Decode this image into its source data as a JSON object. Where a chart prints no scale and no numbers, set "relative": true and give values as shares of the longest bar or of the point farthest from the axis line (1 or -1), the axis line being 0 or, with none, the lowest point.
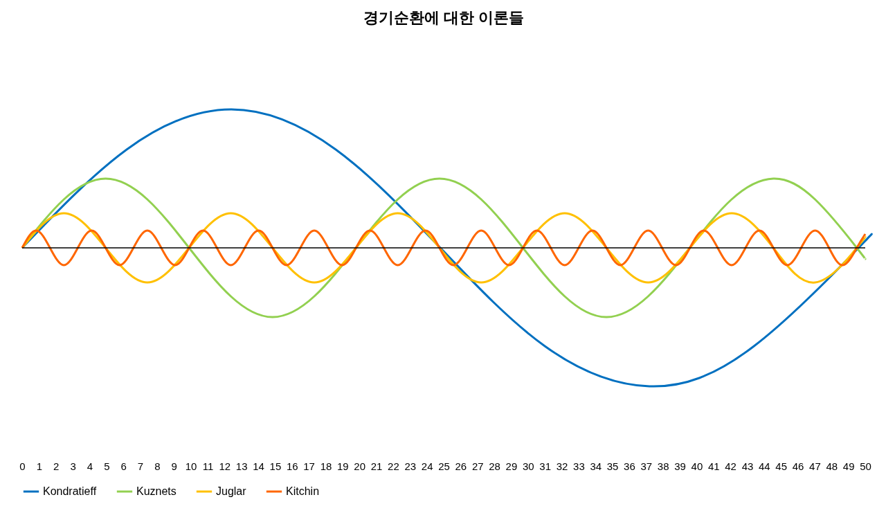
{
  "chart_data": {
    "type": "line",
    "title": "경기순환에 대한 이론들",
    "relative": true,
    "legend": "bottom",
    "xlim": [
      0,
      50
    ],
    "xticks": [
      0,
      1,
      2,
      3,
      4,
      5,
      6,
      7,
      8,
      9,
      10,
      11,
      12,
      13,
      14,
      15,
      16,
      17,
      18,
      19,
      20,
      21,
      22,
      23,
      24,
      25,
      26,
      27,
      28,
      29,
      30,
      31,
      32,
      33,
      34,
      35,
      36,
      37,
      38,
      39,
      40,
      41,
      42,
      43,
      44,
      45,
      46,
      47,
      48,
      49,
      50
    ],
    "series": [
      {
        "name": "Kondratieff",
        "color": "#0070c0",
        "x": [
          0,
          6.2,
          12.4,
          18.6,
          24.8,
          31,
          37.2,
          43.4,
          49.6,
          50
        ],
        "values": [
          0,
          0.71,
          1,
          0.71,
          0,
          -0.71,
          -1,
          -0.71,
          0,
          0.05
        ]
      },
      {
        "name": "Kuznets",
        "color": "#92d050",
        "x": [
          0,
          2.475,
          4.95,
          7.425,
          9.9,
          12.375,
          14.85,
          17.325,
          19.8,
          22.275,
          24.75,
          27.225,
          29.7,
          32.175,
          34.65,
          37.125,
          39.6,
          42.075,
          44.55,
          47.025,
          49.5,
          50
        ],
        "values": [
          0,
          0.35,
          0.5,
          0.35,
          0,
          -0.35,
          -0.5,
          -0.35,
          0,
          0.35,
          0.5,
          0.35,
          0,
          -0.35,
          -0.5,
          -0.35,
          0,
          0.35,
          0.5,
          0.35,
          0,
          -0.08
        ]
      },
      {
        "name": "Juglar",
        "color": "#ffc000",
        "x": [
          0,
          2.475,
          4.95,
          7.425,
          9.9,
          12.375,
          14.85,
          17.325,
          19.8,
          22.275,
          24.75,
          27.225,
          29.7,
          32.175,
          34.65,
          37.125,
          39.6,
          42.075,
          44.55,
          47.025,
          49.5,
          50
        ],
        "values": [
          0,
          0.25,
          0,
          -0.25,
          0,
          0.25,
          0,
          -0.25,
          0,
          0.25,
          0,
          -0.25,
          0,
          0.25,
          0,
          -0.25,
          0,
          0.25,
          0,
          -0.25,
          0,
          0.08
        ]
      },
      {
        "name": "Kitchin",
        "color": "#ff6600",
        "x": [
          0,
          0.825,
          1.65,
          2.475,
          3.3,
          4.125,
          4.95,
          5.775,
          6.6,
          7.425,
          8.25,
          9.075,
          9.9,
          10.725,
          11.55,
          12.375,
          13.2,
          14.025,
          14.85,
          15.675,
          16.5,
          17.325,
          18.15,
          18.975,
          19.8,
          20.625,
          21.45,
          22.275,
          23.1,
          23.925,
          24.75,
          25.575,
          26.4,
          27.225,
          28.05,
          28.875,
          29.7,
          30.525,
          31.35,
          32.175,
          33,
          33.825,
          34.65,
          35.475,
          36.3,
          37.125,
          37.95,
          38.775,
          39.6,
          40.425,
          41.25,
          42.075,
          42.9,
          43.725,
          44.55,
          45.375,
          46.2,
          47.025,
          47.85,
          48.675,
          49.5,
          50
        ],
        "values": [
          0,
          0.125,
          0,
          -0.125,
          0,
          0.125,
          0,
          -0.125,
          0,
          0.125,
          0,
          -0.125,
          0,
          0.125,
          0,
          -0.125,
          0,
          0.125,
          0,
          -0.125,
          0,
          0.125,
          0,
          -0.125,
          0,
          0.125,
          0,
          -0.125,
          0,
          0.125,
          0,
          -0.125,
          0,
          0.125,
          0,
          -0.125,
          0,
          0.125,
          0,
          -0.125,
          0,
          0.125,
          0,
          -0.125,
          0,
          0.125,
          0,
          -0.125,
          0,
          0.125,
          0,
          -0.125,
          0,
          0.125,
          0,
          -0.125,
          0,
          0.125,
          0,
          -0.125,
          0,
          0.1
        ]
      }
    ]
  }
}
